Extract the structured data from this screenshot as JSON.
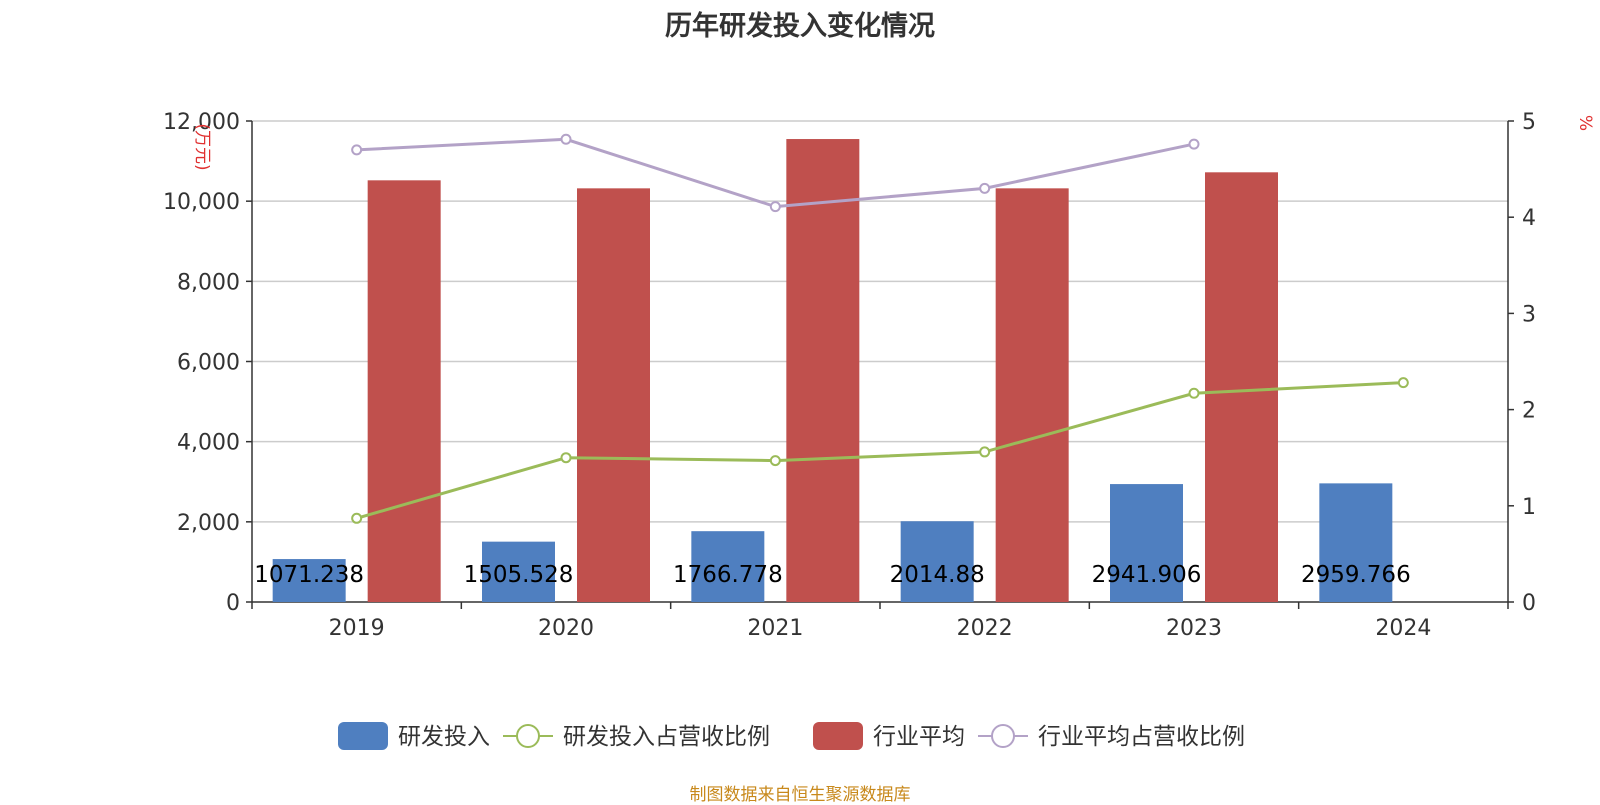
{
  "title": "历年研发投入变化情况",
  "source": "制图数据来自恒生聚源数据库",
  "chart_data": {
    "type": "bar",
    "categories": [
      "2019",
      "2020",
      "2021",
      "2022",
      "2023",
      "2024"
    ],
    "left_axis": {
      "unit": "(万元)",
      "ylim": [
        0,
        12000
      ],
      "ticks": [
        "0",
        "2,000",
        "4,000",
        "6,000",
        "8,000",
        "10,000",
        "12,000"
      ]
    },
    "right_axis": {
      "unit": "%",
      "ylim": [
        0,
        5
      ],
      "ticks": [
        "0",
        "1",
        "2",
        "3",
        "4",
        "5"
      ]
    },
    "series": [
      {
        "name": "研发投入",
        "kind": "bar",
        "axis": "left",
        "color": "#4f7fc0",
        "values": [
          1071.238,
          1505.528,
          1766.778,
          2014.88,
          2941.906,
          2959.766
        ],
        "labels": [
          "1071.238",
          "1505.528",
          "1766.778",
          "2014.88",
          "2941.906",
          "2959.766"
        ]
      },
      {
        "name": "研发投入占营收比例",
        "kind": "line",
        "axis": "right",
        "color": "#9bbb59",
        "values": [
          0.87,
          1.5,
          1.47,
          1.56,
          2.17,
          2.28
        ]
      },
      {
        "name": "行业平均",
        "kind": "bar",
        "axis": "left",
        "color": "#c0504d",
        "values": [
          10520,
          10320,
          11550,
          10320,
          10720,
          null
        ]
      },
      {
        "name": "行业平均占营收比例",
        "kind": "line",
        "axis": "right",
        "color": "#b3a2c7",
        "values": [
          4.7,
          4.81,
          4.11,
          4.3,
          4.76,
          null
        ]
      }
    ]
  }
}
